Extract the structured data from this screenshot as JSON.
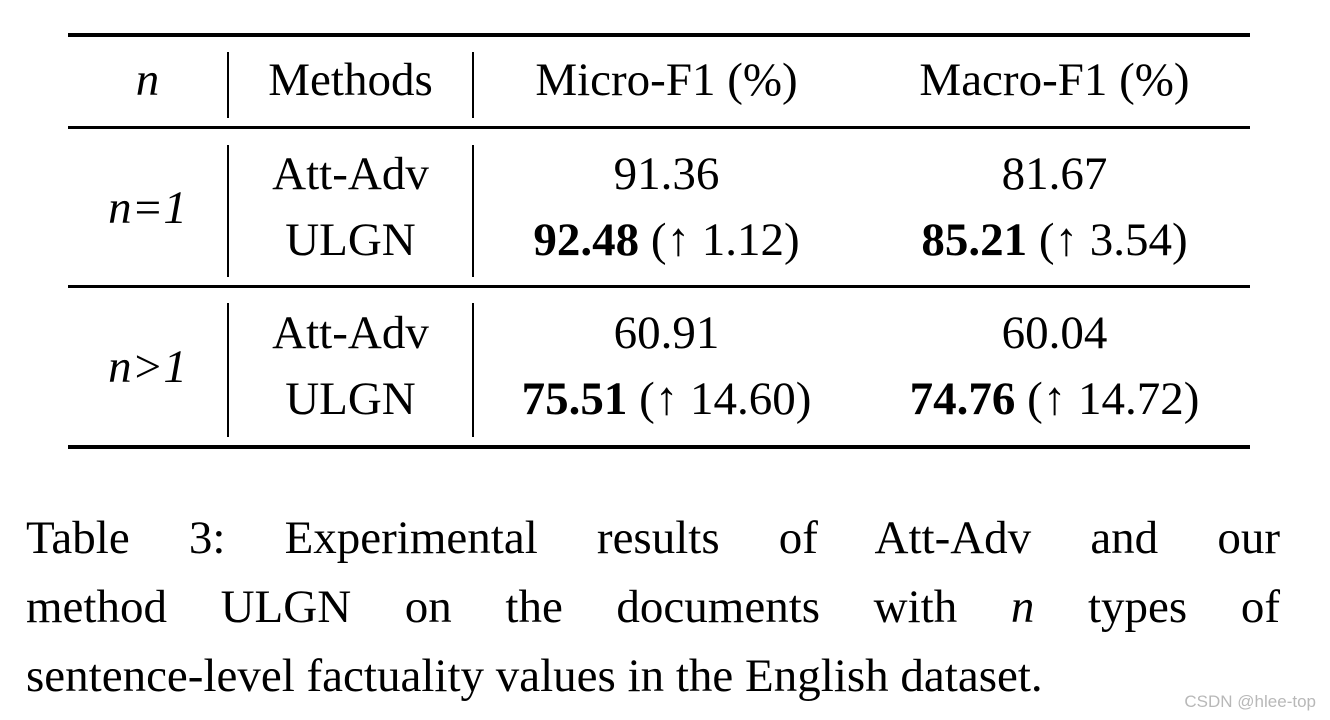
{
  "table": {
    "headers": {
      "n": "n",
      "methods": "Methods",
      "micro": "Micro-F1 (%)",
      "macro": "Macro-F1 (%)"
    },
    "groups": [
      {
        "label": "n=1",
        "rows": [
          {
            "method": "Att-Adv",
            "micro_value": "91.36",
            "macro_value": "81.67"
          },
          {
            "method": "ULGN",
            "micro_value": "92.48",
            "micro_delta": "(↑ 1.12)",
            "macro_value": "85.21",
            "macro_delta": "(↑ 3.54)"
          }
        ]
      },
      {
        "label": "n>1",
        "rows": [
          {
            "method": "Att-Adv",
            "micro_value": "60.91",
            "macro_value": "60.04"
          },
          {
            "method": "ULGN",
            "micro_value": "75.51",
            "micro_delta": "(↑ 14.60)",
            "macro_value": "74.76",
            "macro_delta": "(↑ 14.72)"
          }
        ]
      }
    ]
  },
  "caption": {
    "line1": "Table 3:  Experimental results of Att-Adv and our",
    "line2_a": "method ULGN on the documents with",
    "line2_var": "n",
    "line2_b": "types of",
    "line3": "sentence-level factuality values in the English dataset."
  },
  "watermark": "CSDN @hlee-top"
}
